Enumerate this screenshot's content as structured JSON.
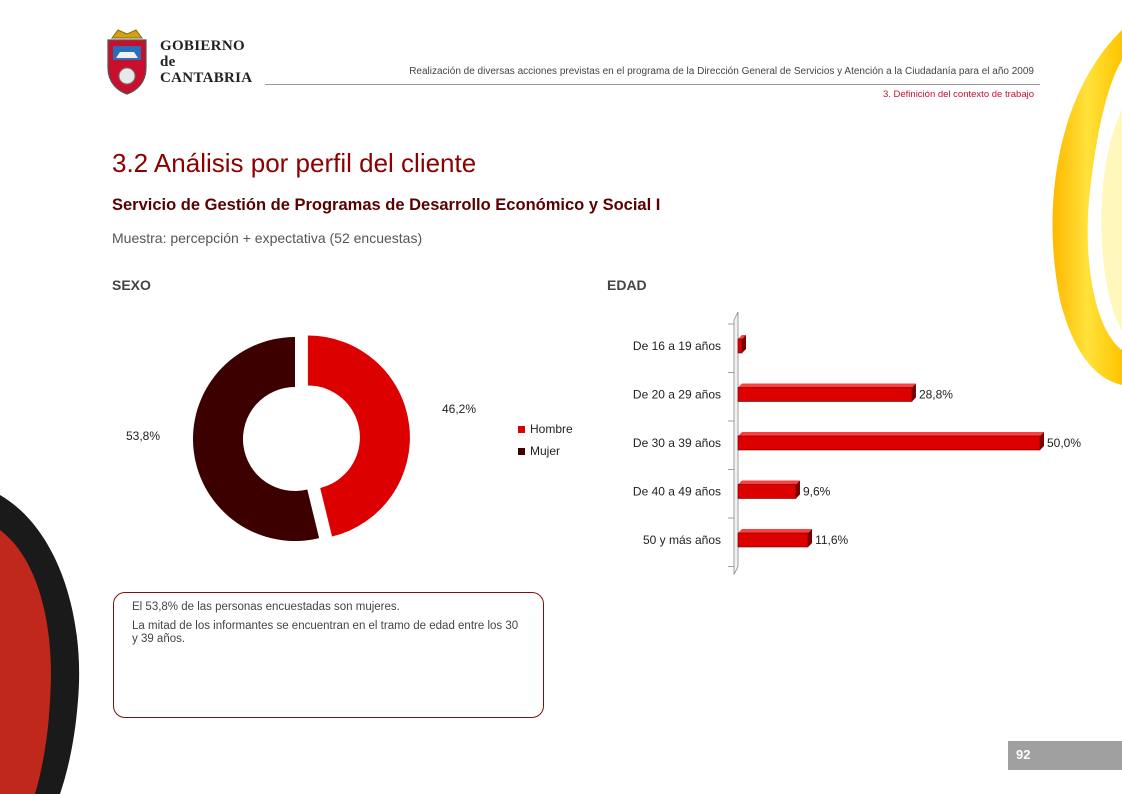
{
  "header": {
    "org_line1": "GOBIERNO",
    "org_line2": "de",
    "org_line3": "CANTABRIA",
    "description": "Realización de diversas acciones previstas en el programa de la Dirección General de Servicios y Atención a la Ciudadanía para el año 2009",
    "section": "3. Definición del contexto de trabajo"
  },
  "page": {
    "title": "3.2 Análisis por perfil del cliente",
    "subtitle": "Servicio de Gestión de Programas de Desarrollo Económico y Social I",
    "sample": "Muestra: percepción + expectativa (52 encuestas)"
  },
  "chart_data": [
    {
      "type": "pie",
      "title": "SEXO",
      "labels": [
        "Hombre",
        "Mujer"
      ],
      "values": [
        46.2,
        53.8
      ],
      "value_labels": [
        "46,2%",
        "53,8%"
      ],
      "colors": [
        "#dd0000",
        "#3d0000"
      ],
      "legend": "right"
    },
    {
      "type": "bar",
      "orientation": "horizontal",
      "title": "EDAD",
      "categories": [
        "De 16 a 19 años",
        "De 20 a 29 años",
        "De 30 a 39 años",
        "De 40 a 49 años",
        "50 y más años"
      ],
      "values": [
        0,
        28.8,
        50.0,
        9.6,
        11.6
      ],
      "value_labels": [
        "",
        "28,8%",
        "50,0%",
        "9,6%",
        "11,6%"
      ],
      "xlim": [
        0,
        50
      ],
      "color": "#dd0000"
    }
  ],
  "callout": {
    "line1": "El 53,8% de las personas encuestadas son mujeres.",
    "line2": "La mitad de los informantes se encuentran en el tramo de edad entre los 30 y 39 años."
  },
  "page_number": "92",
  "colors": {
    "title": "#8b0000",
    "accent": "#c8102e",
    "deco_yellow": "#ffd400",
    "deco_red": "#c0281c"
  }
}
